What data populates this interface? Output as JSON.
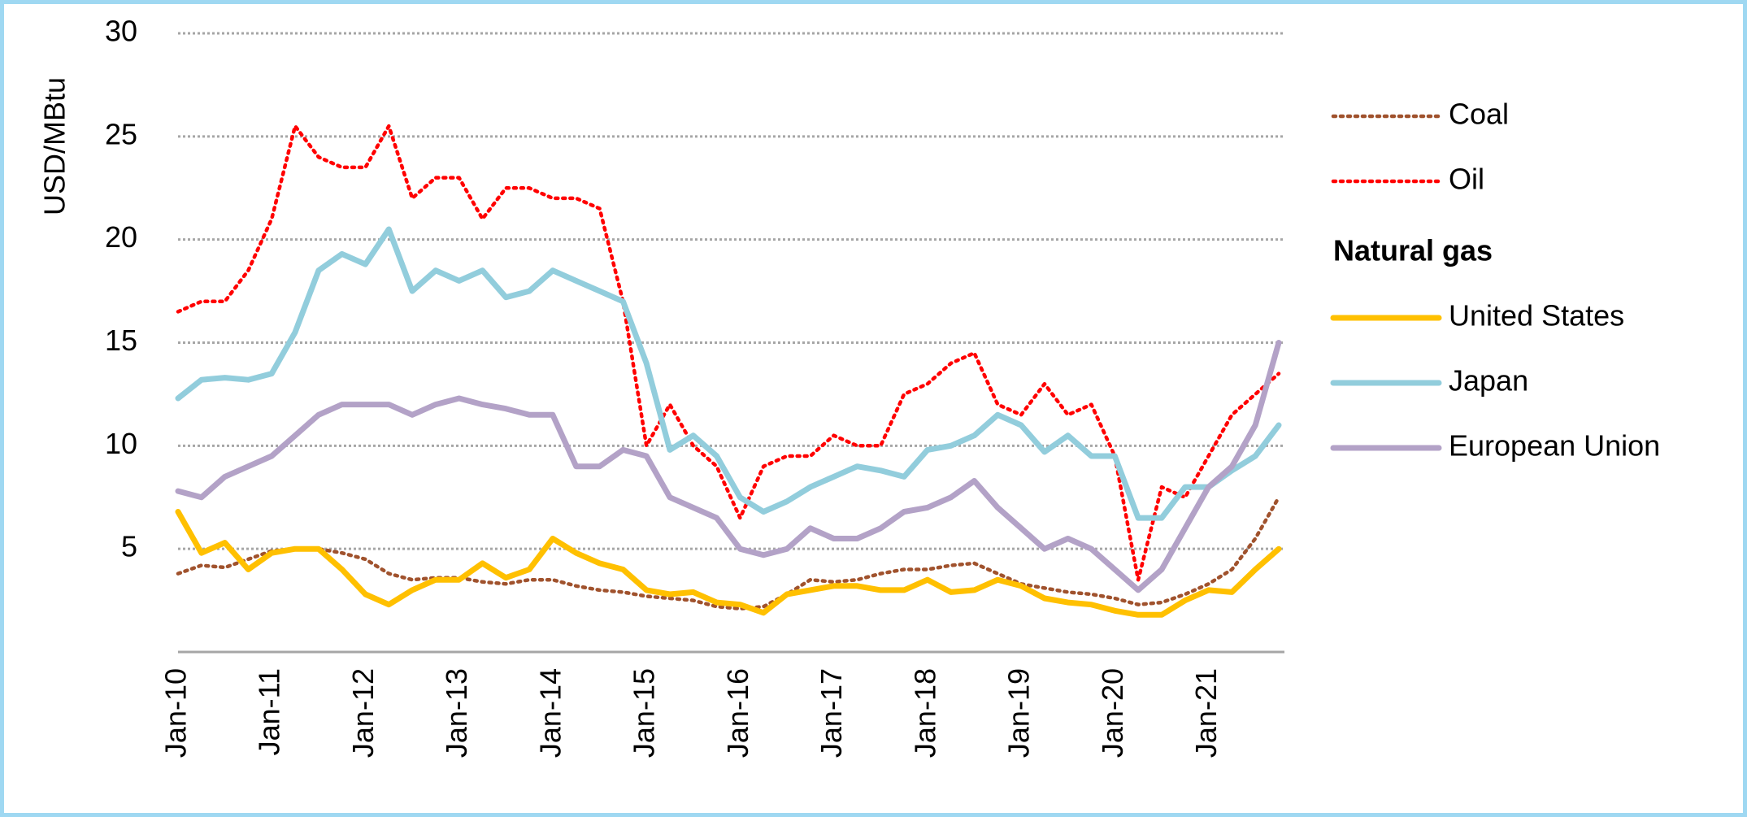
{
  "chart_data": {
    "type": "line",
    "y_label": "USD/MBtu",
    "legend_title": "Natural gas",
    "legend_position": "right",
    "grid": true,
    "ylim": [
      0,
      30
    ],
    "yticks": [
      5,
      10,
      15,
      20,
      25,
      30
    ],
    "categories": [
      "Jan-10",
      null,
      null,
      null,
      "Jan-11",
      null,
      null,
      null,
      "Jan-12",
      null,
      null,
      null,
      "Jan-13",
      null,
      null,
      null,
      "Jan-14",
      null,
      null,
      null,
      "Jan-15",
      null,
      null,
      null,
      "Jan-16",
      null,
      null,
      null,
      "Jan-17",
      null,
      null,
      null,
      "Jan-18",
      null,
      null,
      null,
      "Jan-19",
      null,
      null,
      null,
      "Jan-20",
      null,
      null,
      null,
      "Jan-21",
      null,
      null,
      null
    ],
    "series": [
      {
        "name": "Coal",
        "color": "#a0522d",
        "style": "dotted",
        "group": "other",
        "values": [
          3.8,
          4.2,
          4.1,
          4.5,
          4.9,
          5,
          5,
          4.8,
          4.5,
          3.8,
          3.5,
          3.6,
          3.6,
          3.4,
          3.3,
          3.5,
          3.5,
          3.2,
          3,
          2.9,
          2.7,
          2.6,
          2.5,
          2.2,
          2.1,
          2.2,
          2.8,
          3.5,
          3.4,
          3.5,
          3.8,
          4,
          4,
          4.2,
          4.3,
          3.8,
          3.3,
          3.1,
          2.9,
          2.8,
          2.6,
          2.3,
          2.4,
          2.8,
          3.3,
          4,
          5.5,
          7.5
        ]
      },
      {
        "name": "Oil",
        "color": "#ff0000",
        "style": "dotted",
        "group": "other",
        "values": [
          16.5,
          17,
          17,
          18.5,
          21,
          25.5,
          24,
          23.5,
          23.5,
          25.5,
          22,
          23,
          23,
          21,
          22.5,
          22.5,
          22,
          22,
          21.5,
          17,
          10,
          12,
          10,
          9,
          6.5,
          9,
          9.5,
          9.5,
          10.5,
          10,
          10,
          12.5,
          13,
          14,
          14.5,
          12,
          11.5,
          13,
          11.5,
          12,
          9.5,
          3.5,
          8,
          7.5,
          9.5,
          11.5,
          12.5,
          13.5
        ]
      },
      {
        "name": "United States",
        "color": "#ffc000",
        "style": "solid",
        "group": "gas",
        "values": [
          6.8,
          4.8,
          5.3,
          4,
          4.8,
          5,
          5,
          4,
          2.8,
          2.3,
          3,
          3.5,
          3.5,
          4.3,
          3.6,
          4,
          5.5,
          4.8,
          4.3,
          4,
          3,
          2.8,
          2.9,
          2.4,
          2.3,
          1.9,
          2.8,
          3,
          3.2,
          3.2,
          3,
          3,
          3.5,
          2.9,
          3,
          3.5,
          3.2,
          2.6,
          2.4,
          2.3,
          2,
          1.8,
          1.8,
          2.5,
          3,
          2.9,
          4,
          5
        ]
      },
      {
        "name": "Japan",
        "color": "#92cddc",
        "style": "solid",
        "group": "gas",
        "values": [
          12.3,
          13.2,
          13.3,
          13.2,
          13.5,
          15.5,
          18.5,
          19.3,
          18.8,
          20.5,
          17.5,
          18.5,
          18,
          18.5,
          17.2,
          17.5,
          18.5,
          18,
          17.5,
          17,
          14,
          9.8,
          10.5,
          9.5,
          7.5,
          6.8,
          7.3,
          8,
          8.5,
          9,
          8.8,
          8.5,
          9.8,
          10,
          10.5,
          11.5,
          11,
          9.7,
          10.5,
          9.5,
          9.5,
          6.5,
          6.5,
          8,
          8,
          8.8,
          9.5,
          11
        ]
      },
      {
        "name": "European Union",
        "color": "#b3a2c7",
        "style": "solid",
        "group": "gas",
        "values": [
          7.8,
          7.5,
          8.5,
          9,
          9.5,
          10.5,
          11.5,
          12,
          12,
          12,
          11.5,
          12,
          12.3,
          12,
          11.8,
          11.5,
          11.5,
          9,
          9,
          9.8,
          9.5,
          7.5,
          7,
          6.5,
          5,
          4.7,
          5,
          6,
          5.5,
          5.5,
          6,
          6.8,
          7,
          7.5,
          8.3,
          7,
          6,
          5,
          5.5,
          5,
          4,
          3,
          4,
          6,
          8,
          9,
          11,
          15
        ]
      }
    ]
  }
}
